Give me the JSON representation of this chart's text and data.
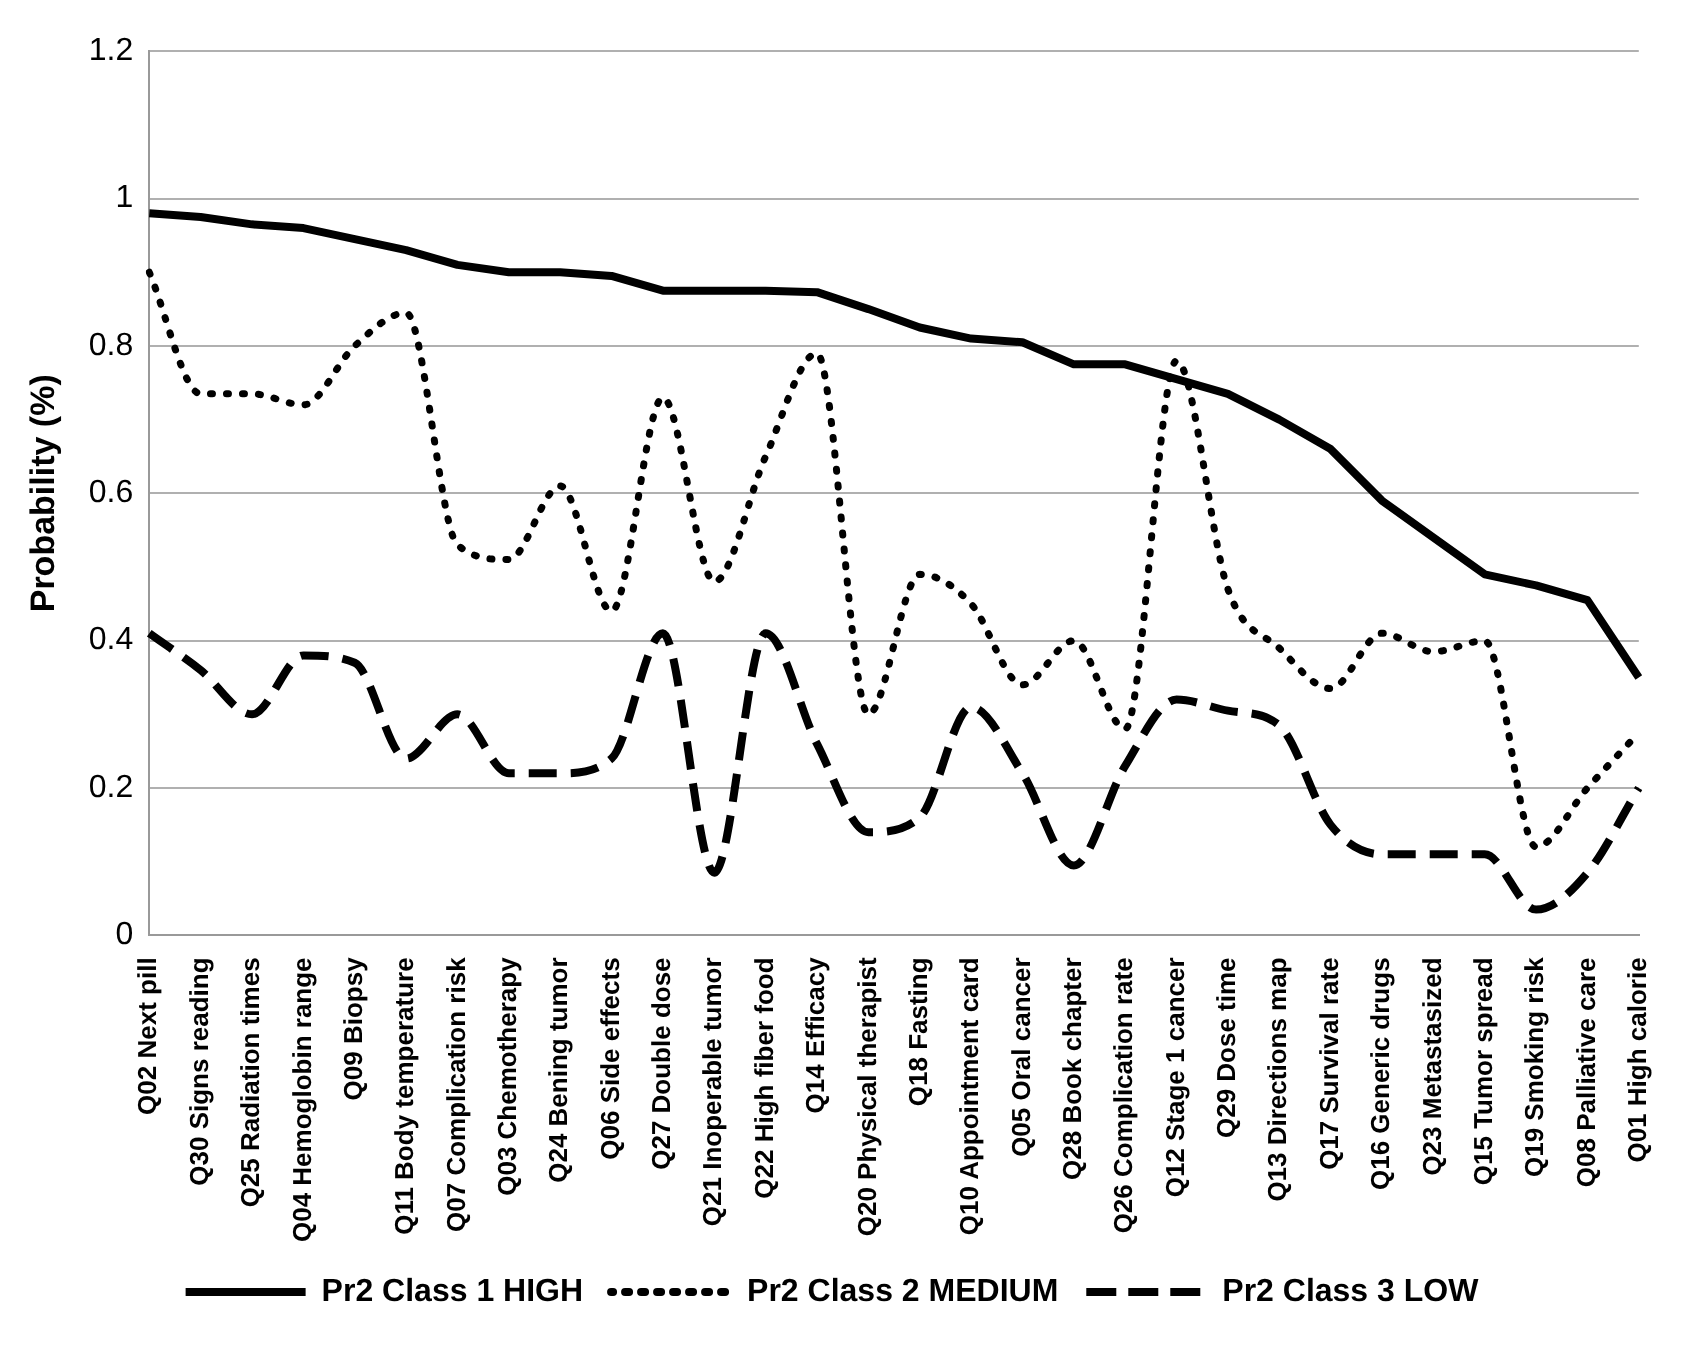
{
  "chart_data": {
    "type": "line",
    "ylabel": "Probability (%)",
    "categories": [
      "Q02 Next pill",
      "Q30 Signs reading",
      "Q25 Radiation times",
      "Q04 Hemoglobin range",
      "Q09 Biopsy",
      "Q11 Body temperature",
      "Q07 Complication risk",
      "Q03 Chemotherapy",
      "Q24 Bening tumor",
      "Q06 Side effects",
      "Q27 Double dose",
      "Q21 Inoperable tumor",
      "Q22 High fiber food",
      "Q14 Efficacy",
      "Q20 Physical therapist",
      "Q18 Fasting",
      "Q10 Appointment card",
      "Q05 Oral cancer",
      "Q28 Book chapter",
      "Q26 Complication rate",
      "Q12 Stage 1 cancer",
      "Q29 Dose time",
      "Q13 Directions map",
      "Q17 Survival rate",
      "Q16 Generic drugs",
      "Q23 Metastasized",
      "Q15 Tumor spread",
      "Q19 Smoking risk",
      "Q08 Palliative care",
      "Q01 High calorie"
    ],
    "series": [
      {
        "name": "Pr2 Class 1 HIGH",
        "color": "#000000",
        "line_style": "solid",
        "values": [
          0.98,
          0.975,
          0.965,
          0.96,
          0.945,
          0.93,
          0.91,
          0.9,
          0.9,
          0.895,
          0.875,
          0.875,
          0.875,
          0.873,
          0.85,
          0.825,
          0.81,
          0.805,
          0.775,
          0.775,
          0.755,
          0.735,
          0.7,
          0.66,
          0.59,
          0.54,
          0.49,
          0.475,
          0.455,
          0.35
        ]
      },
      {
        "name": "Pr2 Class 2 MEDIUM",
        "color": "#000000",
        "line_style": "dotted",
        "values": [
          0.9,
          0.735,
          0.735,
          0.72,
          0.8,
          0.845,
          0.53,
          0.51,
          0.61,
          0.44,
          0.73,
          0.48,
          0.65,
          0.79,
          0.3,
          0.49,
          0.45,
          0.34,
          0.4,
          0.28,
          0.78,
          0.47,
          0.39,
          0.335,
          0.41,
          0.385,
          0.4,
          0.12,
          0.2,
          0.275
        ]
      },
      {
        "name": "Pr2 Class 3 LOW",
        "color": "#000000",
        "line_style": "dashed",
        "values": [
          0.41,
          0.36,
          0.3,
          0.38,
          0.37,
          0.24,
          0.3,
          0.22,
          0.22,
          0.24,
          0.41,
          0.085,
          0.41,
          0.26,
          0.14,
          0.16,
          0.31,
          0.22,
          0.095,
          0.23,
          0.32,
          0.305,
          0.285,
          0.15,
          0.11,
          0.11,
          0.11,
          0.035,
          0.085,
          0.2
        ]
      }
    ],
    "ylim": [
      0,
      1.2
    ],
    "yticks": [
      0,
      0.2,
      0.4,
      0.6,
      0.8,
      1,
      1.2
    ],
    "grid": "y",
    "legend": "bottom",
    "marker": "none"
  }
}
